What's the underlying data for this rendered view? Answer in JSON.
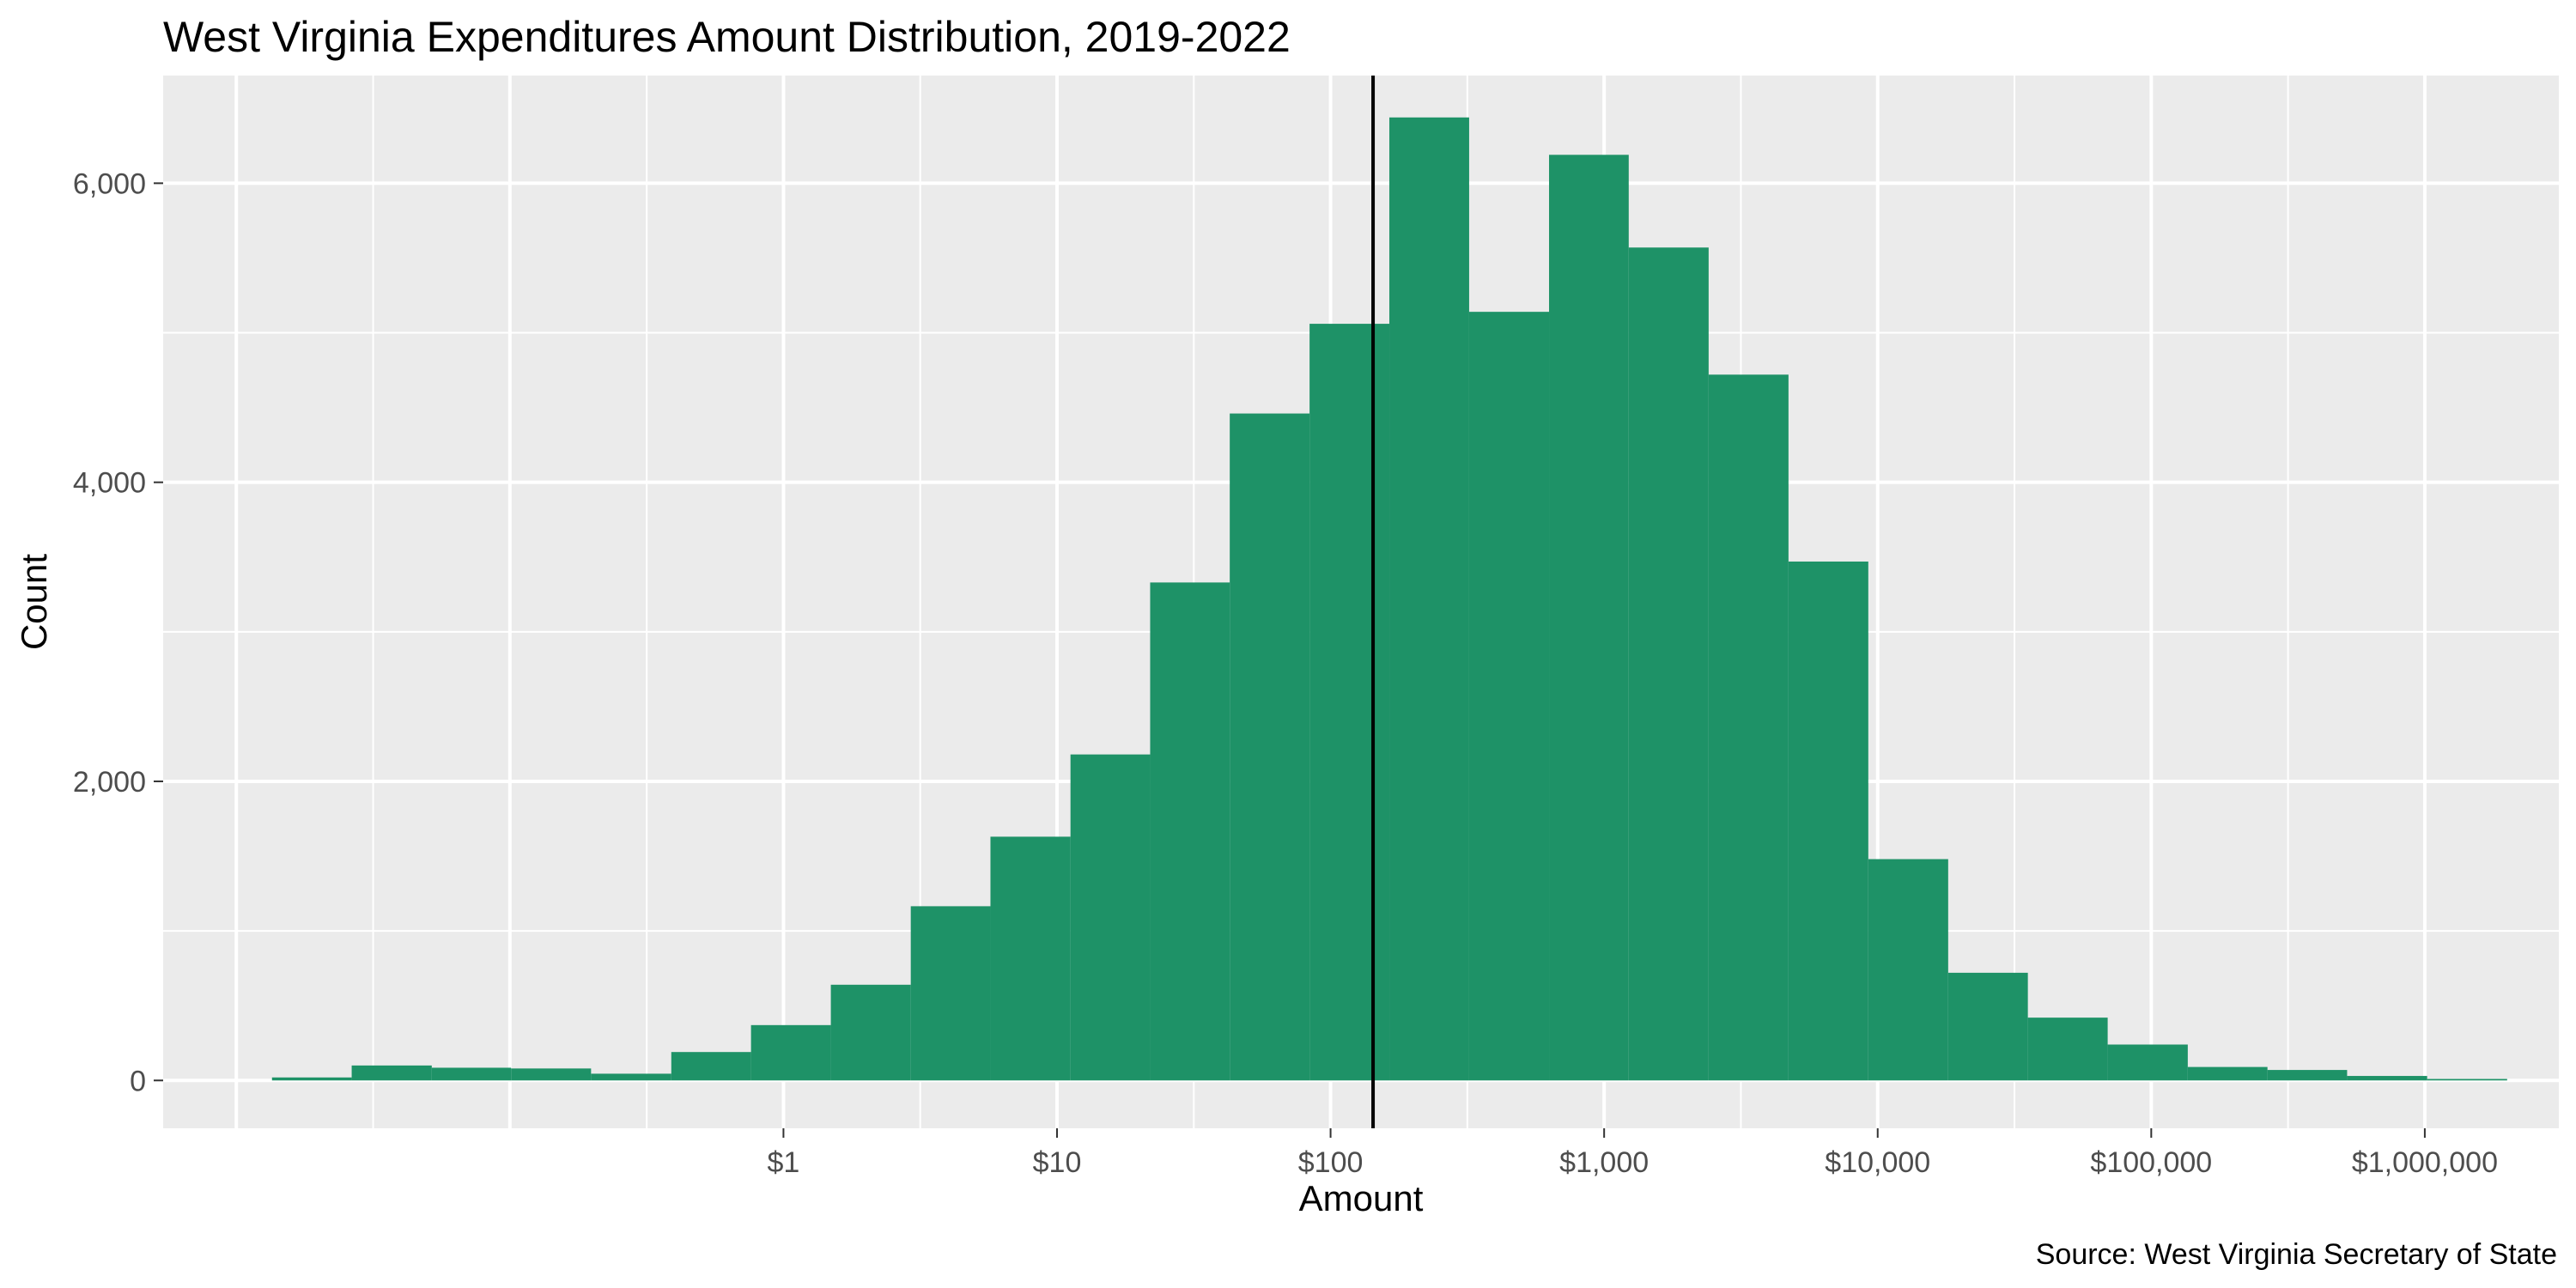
{
  "chart_data": {
    "type": "bar",
    "title": "West Virginia Expenditures Amount Distribution, 2019-2022",
    "xlabel": "Amount",
    "ylabel": "Count",
    "caption": "Source: West Virginia Secretary of State",
    "x_scale": "log10",
    "x_ticks": [
      {
        "value": 1,
        "label": "$1"
      },
      {
        "value": 10,
        "label": "$10"
      },
      {
        "value": 100,
        "label": "$100"
      },
      {
        "value": 1000,
        "label": "$1,000"
      },
      {
        "value": 10000,
        "label": "$10,000"
      },
      {
        "value": 100000,
        "label": "$100,000"
      },
      {
        "value": 1000000,
        "label": "$1,000,000"
      }
    ],
    "y_ticks": [
      {
        "value": 0,
        "label": "0"
      },
      {
        "value": 2000,
        "label": "2,000"
      },
      {
        "value": 4000,
        "label": "4,000"
      },
      {
        "value": 6000,
        "label": "6,000"
      }
    ],
    "ylim": [
      -320,
      6720
    ],
    "xlim": [
      0.0054,
      3090000.0
    ],
    "grid": true,
    "bar_color": "#1E9267",
    "median_line": 143,
    "bins": [
      {
        "x0": 0.0135,
        "x1": 0.0264,
        "count": 20
      },
      {
        "x0": 0.0264,
        "x1": 0.0518,
        "count": 100
      },
      {
        "x0": 0.0518,
        "x1": 0.101,
        "count": 85
      },
      {
        "x0": 0.101,
        "x1": 0.198,
        "count": 80
      },
      {
        "x0": 0.198,
        "x1": 0.389,
        "count": 45
      },
      {
        "x0": 0.389,
        "x1": 0.761,
        "count": 190
      },
      {
        "x0": 0.761,
        "x1": 1.49,
        "count": 370
      },
      {
        "x0": 1.49,
        "x1": 2.92,
        "count": 640
      },
      {
        "x0": 2.92,
        "x1": 5.71,
        "count": 1165
      },
      {
        "x0": 5.71,
        "x1": 11.2,
        "count": 1630
      },
      {
        "x0": 11.2,
        "x1": 21.9,
        "count": 2180
      },
      {
        "x0": 21.9,
        "x1": 42.8,
        "count": 3330
      },
      {
        "x0": 42.8,
        "x1": 83.8,
        "count": 4460
      },
      {
        "x0": 83.8,
        "x1": 164,
        "count": 5060
      },
      {
        "x0": 164,
        "x1": 321,
        "count": 6440
      },
      {
        "x0": 321,
        "x1": 629,
        "count": 5140
      },
      {
        "x0": 629,
        "x1": 1230,
        "count": 6190
      },
      {
        "x0": 1230,
        "x1": 2410,
        "count": 5570
      },
      {
        "x0": 2410,
        "x1": 4720,
        "count": 4720
      },
      {
        "x0": 4720,
        "x1": 9240,
        "count": 3470
      },
      {
        "x0": 9240,
        "x1": 18100,
        "count": 1480
      },
      {
        "x0": 18100,
        "x1": 35400,
        "count": 720
      },
      {
        "x0": 35400,
        "x1": 69300,
        "count": 420
      },
      {
        "x0": 69300,
        "x1": 136000,
        "count": 240
      },
      {
        "x0": 136000,
        "x1": 266000,
        "count": 90
      },
      {
        "x0": 266000,
        "x1": 520000,
        "count": 70
      },
      {
        "x0": 520000,
        "x1": 1020000,
        "count": 30
      },
      {
        "x0": 1020000,
        "x1": 2000000,
        "count": 10
      }
    ]
  }
}
